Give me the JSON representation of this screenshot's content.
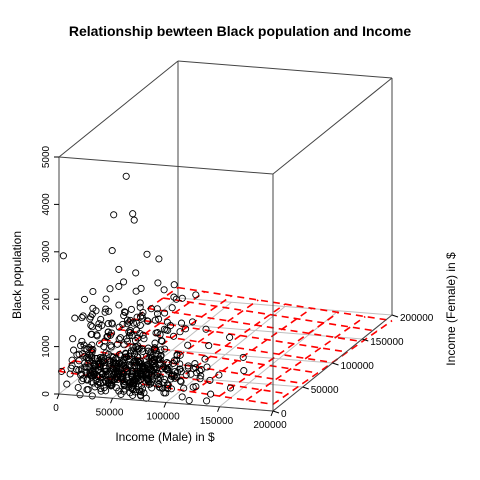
{
  "chart_data": {
    "type": "scatter",
    "title": "Relationship bewteen Black population and Income",
    "xlabel": "Income (Male) in $",
    "ylabel": "Income (Female) in $",
    "zlabel": "Black population",
    "x_ticks": [
      "0",
      "50000",
      "100000",
      "150000",
      "200000"
    ],
    "y_ticks": [
      "0",
      "50000",
      "100000",
      "150000",
      "200000"
    ],
    "z_ticks": [
      "0",
      "1000",
      "2000",
      "3000",
      "4000",
      "5000"
    ],
    "xlim": [
      0,
      200000
    ],
    "ylim": [
      0,
      200000
    ],
    "zlim": [
      0,
      5000
    ],
    "grid": true,
    "grid_color": "#bfbfbf",
    "plane_color": "#ff0000",
    "point_color": "#000000",
    "highlighted_points": [
      {
        "x": 60000,
        "y": 5000,
        "z": 4650
      },
      {
        "x": 40000,
        "y": 20000,
        "z": 3650
      },
      {
        "x": 55000,
        "y": 25000,
        "z": 3650
      },
      {
        "x": 48000,
        "y": 40000,
        "z": 3350
      },
      {
        "x": 3000,
        "y": 2000,
        "z": 2900
      },
      {
        "x": 33000,
        "y": 30000,
        "z": 2780
      },
      {
        "x": 60000,
        "y": 40000,
        "z": 2650
      },
      {
        "x": 42000,
        "y": 25000,
        "z": 2450
      },
      {
        "x": 55000,
        "y": 30000,
        "z": 2350
      },
      {
        "x": 60000,
        "y": 60000,
        "z": 2350
      }
    ]
  }
}
